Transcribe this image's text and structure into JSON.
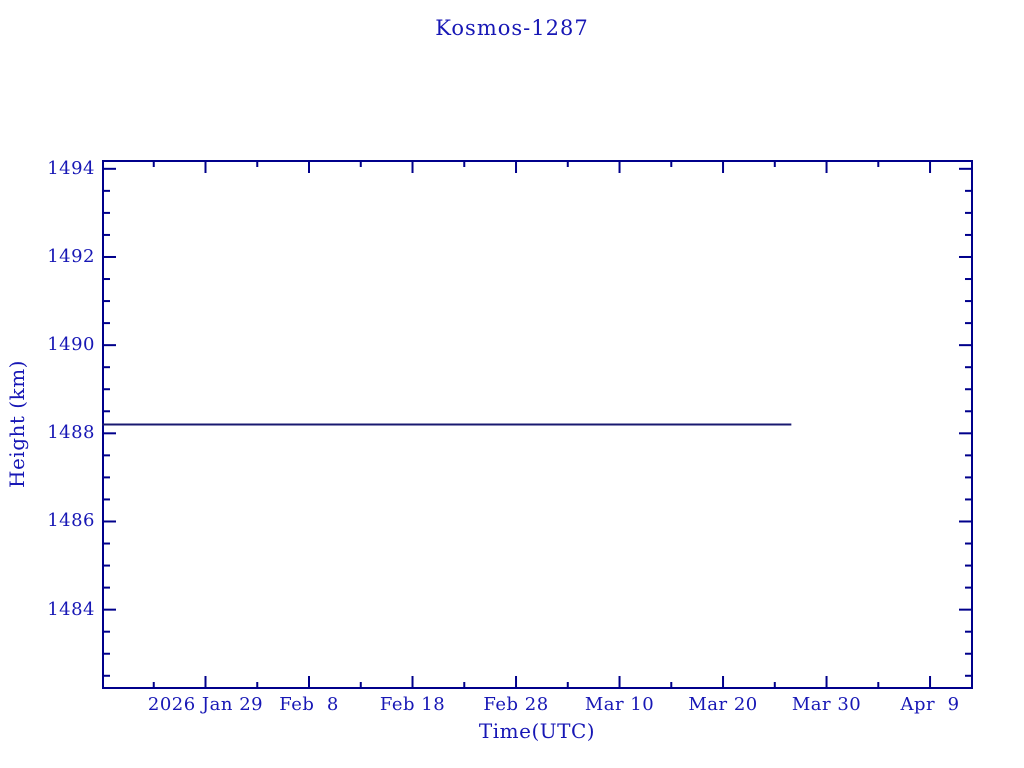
{
  "window": {
    "background": "#ffffff"
  },
  "chart_data": {
    "type": "line",
    "title": "Kosmos-1287",
    "xlabel": "Time(UTC)",
    "ylabel": "Height (km)",
    "x_axis": {
      "unit": "days (0 = left edge of plot, approx 2026 Jan 19)",
      "min": 0,
      "max": 84.15,
      "minor_step": 5,
      "major_ticks": [
        {
          "day": 10,
          "label": "2026 Jan 29"
        },
        {
          "day": 20,
          "label": "Feb  8"
        },
        {
          "day": 30,
          "label": "Feb 18"
        },
        {
          "day": 40,
          "label": "Feb 28"
        },
        {
          "day": 50,
          "label": "Mar 10"
        },
        {
          "day": 60,
          "label": "Mar 20"
        },
        {
          "day": 70,
          "label": "Mar 30"
        },
        {
          "day": 80,
          "label": "Apr  9"
        }
      ]
    },
    "y_axis": {
      "min": 1482.2,
      "max": 1494.2,
      "minor_step": 0.5,
      "major_ticks": [
        1484,
        1486,
        1488,
        1490,
        1492,
        1494
      ]
    },
    "series": [
      {
        "name": "height-km",
        "color": "#191970",
        "points": [
          [
            0,
            1488.2
          ],
          [
            66.6,
            1488.2
          ]
        ]
      }
    ],
    "grid": false,
    "legend": false,
    "colors": {
      "axis": "#00008b",
      "text": "#1717b5",
      "background": "#ffffff"
    }
  }
}
